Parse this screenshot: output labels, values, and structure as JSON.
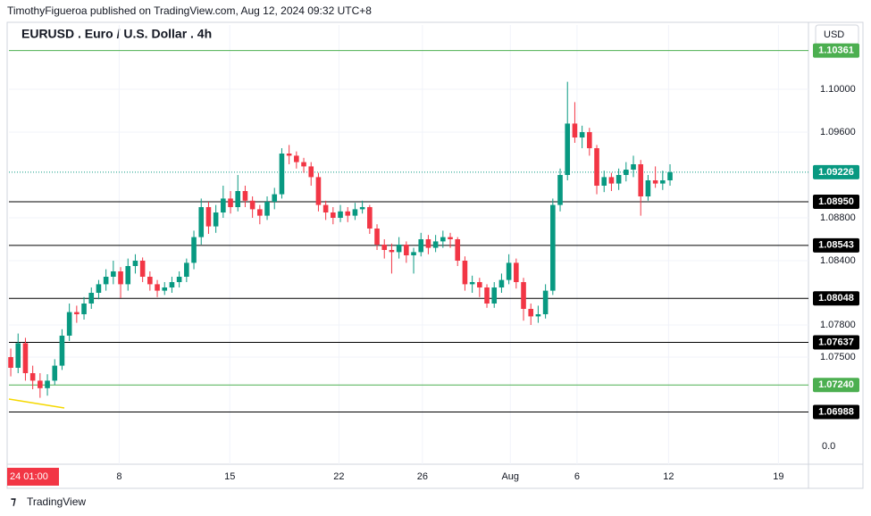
{
  "header": {
    "byline": "TimothyFigueroa published on TradingView.com, Aug 12, 2024 09:32 UTC+8"
  },
  "footer": {
    "brand": "TradingView"
  },
  "chart_data": {
    "type": "candlestick",
    "title": "EURUSD . Euro / U.S. Dollar . 4h",
    "currency": "USD",
    "up_color": "#089981",
    "down_color": "#f23645",
    "grid": true,
    "crosshair_label": "24  01:00",
    "axis_footer_label": "0.0",
    "ylim": [
      1.065,
      1.106
    ],
    "yticks": [
      {
        "value": 1.1,
        "label": "1.10000"
      },
      {
        "value": 1.096,
        "label": "1.09600"
      },
      {
        "value": 1.088,
        "label": "1.08800"
      },
      {
        "value": 1.084,
        "label": "1.08400"
      },
      {
        "value": 1.078,
        "label": "1.07800"
      },
      {
        "value": 1.075,
        "label": "1.07500"
      }
    ],
    "xlim": [
      -0.25,
      108.9
    ],
    "xticks": [
      {
        "value": 14.8,
        "label": "8"
      },
      {
        "value": 29.9,
        "label": "15"
      },
      {
        "value": 44.8,
        "label": "22"
      },
      {
        "value": 56.2,
        "label": "26"
      },
      {
        "value": 68.2,
        "label": "Aug"
      },
      {
        "value": 77.3,
        "label": "6"
      },
      {
        "value": 89.8,
        "label": "12"
      },
      {
        "value": 104.8,
        "label": "19"
      }
    ],
    "levels": [
      {
        "value": 1.10361,
        "label": "1.10361",
        "color": "#4caf50"
      },
      {
        "value": 1.0895,
        "label": "1.08950",
        "color": "#000000"
      },
      {
        "value": 1.08543,
        "label": "1.08543",
        "color": "#000000"
      },
      {
        "value": 1.08048,
        "label": "1.08048",
        "color": "#000000"
      },
      {
        "value": 1.07637,
        "label": "1.07637",
        "color": "#000000"
      },
      {
        "value": 1.0724,
        "label": "1.07240",
        "color": "#4caf50"
      },
      {
        "value": 1.06988,
        "label": "1.06988",
        "color": "#000000"
      }
    ],
    "last_price": {
      "value": 1.09226,
      "label": "1.09226",
      "color": "#089981"
    },
    "ohlc": [
      [
        1.075,
        1.0758,
        1.0732,
        1.074
      ],
      [
        1.074,
        1.0772,
        1.0735,
        1.0763
      ],
      [
        1.0763,
        1.0768,
        1.0728,
        1.0735
      ],
      [
        1.0735,
        1.0742,
        1.072,
        1.0728
      ],
      [
        1.0728,
        1.0735,
        1.0712,
        1.0721
      ],
      [
        1.0721,
        1.0734,
        1.0714,
        1.0728
      ],
      [
        1.0728,
        1.0748,
        1.0724,
        1.0742
      ],
      [
        1.0742,
        1.0776,
        1.0738,
        1.077
      ],
      [
        1.077,
        1.08,
        1.0765,
        1.0792
      ],
      [
        1.0792,
        1.0798,
        1.0782,
        1.079
      ],
      [
        1.079,
        1.0806,
        1.0785,
        1.08
      ],
      [
        1.08,
        1.0815,
        1.0795,
        1.081
      ],
      [
        1.081,
        1.0822,
        1.0804,
        1.0818
      ],
      [
        1.0818,
        1.0832,
        1.0812,
        1.0825
      ],
      [
        1.0825,
        1.084,
        1.0818,
        1.083
      ],
      [
        1.083,
        1.0834,
        1.0805,
        1.0818
      ],
      [
        1.0818,
        1.0842,
        1.0812,
        1.0835
      ],
      [
        1.0835,
        1.0846,
        1.0828,
        1.084
      ],
      [
        1.084,
        1.0843,
        1.082,
        1.0825
      ],
      [
        1.0825,
        1.083,
        1.0812,
        1.0818
      ],
      [
        1.0818,
        1.0822,
        1.0806,
        1.0812
      ],
      [
        1.0812,
        1.082,
        1.0808,
        1.0815
      ],
      [
        1.0815,
        1.0825,
        1.081,
        1.082
      ],
      [
        1.082,
        1.083,
        1.0815,
        1.0825
      ],
      [
        1.0825,
        1.0842,
        1.082,
        1.0838
      ],
      [
        1.0838,
        1.0868,
        1.0832,
        1.0862
      ],
      [
        1.0862,
        1.0898,
        1.0855,
        1.089
      ],
      [
        1.089,
        1.0895,
        1.0865,
        1.0872
      ],
      [
        1.0872,
        1.0892,
        1.0866,
        1.0885
      ],
      [
        1.0885,
        1.091,
        1.088,
        1.0898
      ],
      [
        1.0898,
        1.0905,
        1.0884,
        1.089
      ],
      [
        1.089,
        1.092,
        1.0886,
        1.0905
      ],
      [
        1.0905,
        1.091,
        1.089,
        1.0896
      ],
      [
        1.0896,
        1.09,
        1.088,
        1.0888
      ],
      [
        1.0888,
        1.0892,
        1.0874,
        1.0882
      ],
      [
        1.0882,
        1.09,
        1.0878,
        1.0895
      ],
      [
        1.0895,
        1.0908,
        1.0888,
        1.0902
      ],
      [
        1.0902,
        1.0945,
        1.0898,
        1.094
      ],
      [
        1.094,
        1.0948,
        1.093,
        1.0938
      ],
      [
        1.0938,
        1.0942,
        1.0926,
        1.0932
      ],
      [
        1.0932,
        1.0936,
        1.0922,
        1.0928
      ],
      [
        1.0928,
        1.0932,
        1.091,
        1.0918
      ],
      [
        1.0918,
        1.0922,
        1.0886,
        1.0892
      ],
      [
        1.0892,
        1.0896,
        1.0878,
        1.0885
      ],
      [
        1.0885,
        1.089,
        1.0874,
        1.088
      ],
      [
        1.088,
        1.0892,
        1.0876,
        1.0886
      ],
      [
        1.0886,
        1.089,
        1.0876,
        1.0882
      ],
      [
        1.0882,
        1.0894,
        1.0878,
        1.0888
      ],
      [
        1.0888,
        1.0896,
        1.0884,
        1.089
      ],
      [
        1.089,
        1.0892,
        1.0865,
        1.087
      ],
      [
        1.087,
        1.0874,
        1.085,
        1.0855
      ],
      [
        1.0855,
        1.086,
        1.0842,
        1.085
      ],
      [
        1.085,
        1.0856,
        1.0828,
        1.0848
      ],
      [
        1.0848,
        1.0862,
        1.0842,
        1.0855
      ],
      [
        1.0855,
        1.0858,
        1.0838,
        1.0845
      ],
      [
        1.0845,
        1.0852,
        1.0828,
        1.0848
      ],
      [
        1.0848,
        1.0866,
        1.0844,
        1.086
      ],
      [
        1.086,
        1.0864,
        1.0846,
        1.0852
      ],
      [
        1.0852,
        1.0864,
        1.0848,
        1.0858
      ],
      [
        1.0858,
        1.0868,
        1.0852,
        1.0862
      ],
      [
        1.0862,
        1.0866,
        1.0852,
        1.086
      ],
      [
        1.086,
        1.0862,
        1.0835,
        1.084
      ],
      [
        1.084,
        1.0844,
        1.0812,
        1.0818
      ],
      [
        1.0818,
        1.0826,
        1.081,
        1.082
      ],
      [
        1.082,
        1.0824,
        1.0806,
        1.0815
      ],
      [
        1.0815,
        1.0818,
        1.0796,
        1.08
      ],
      [
        1.08,
        1.082,
        1.0796,
        1.0815
      ],
      [
        1.0815,
        1.0828,
        1.081,
        1.0822
      ],
      [
        1.0822,
        1.0846,
        1.0818,
        1.0838
      ],
      [
        1.0838,
        1.0842,
        1.0814,
        1.082
      ],
      [
        1.082,
        1.0824,
        1.0784,
        1.0795
      ],
      [
        1.0795,
        1.08,
        1.078,
        1.0788
      ],
      [
        1.0788,
        1.0798,
        1.0782,
        1.079
      ],
      [
        1.079,
        1.0818,
        1.0786,
        1.0812
      ],
      [
        1.0812,
        1.0898,
        1.0808,
        1.0892
      ],
      [
        1.0892,
        1.0926,
        1.0886,
        1.092
      ],
      [
        1.092,
        1.1007,
        1.0915,
        1.0968
      ],
      [
        1.0968,
        1.0988,
        1.095,
        1.0955
      ],
      [
        1.0955,
        1.0966,
        1.0945,
        1.096
      ],
      [
        1.096,
        1.0964,
        1.0938,
        1.0945
      ],
      [
        1.0945,
        1.0948,
        1.0902,
        1.091
      ],
      [
        1.091,
        1.0924,
        1.0904,
        1.0918
      ],
      [
        1.0918,
        1.0922,
        1.0905,
        1.0912
      ],
      [
        1.0912,
        1.0926,
        1.0906,
        1.092
      ],
      [
        1.092,
        1.0932,
        1.0914,
        1.0925
      ],
      [
        1.0925,
        1.0938,
        1.0918,
        1.093
      ],
      [
        1.093,
        1.0934,
        1.0882,
        1.09
      ],
      [
        1.09,
        1.092,
        1.0896,
        1.0915
      ],
      [
        1.0915,
        1.0928,
        1.0908,
        1.0912
      ],
      [
        1.0912,
        1.0924,
        1.0906,
        1.0915
      ],
      [
        1.0915,
        1.093,
        1.091,
        1.09226
      ]
    ]
  }
}
